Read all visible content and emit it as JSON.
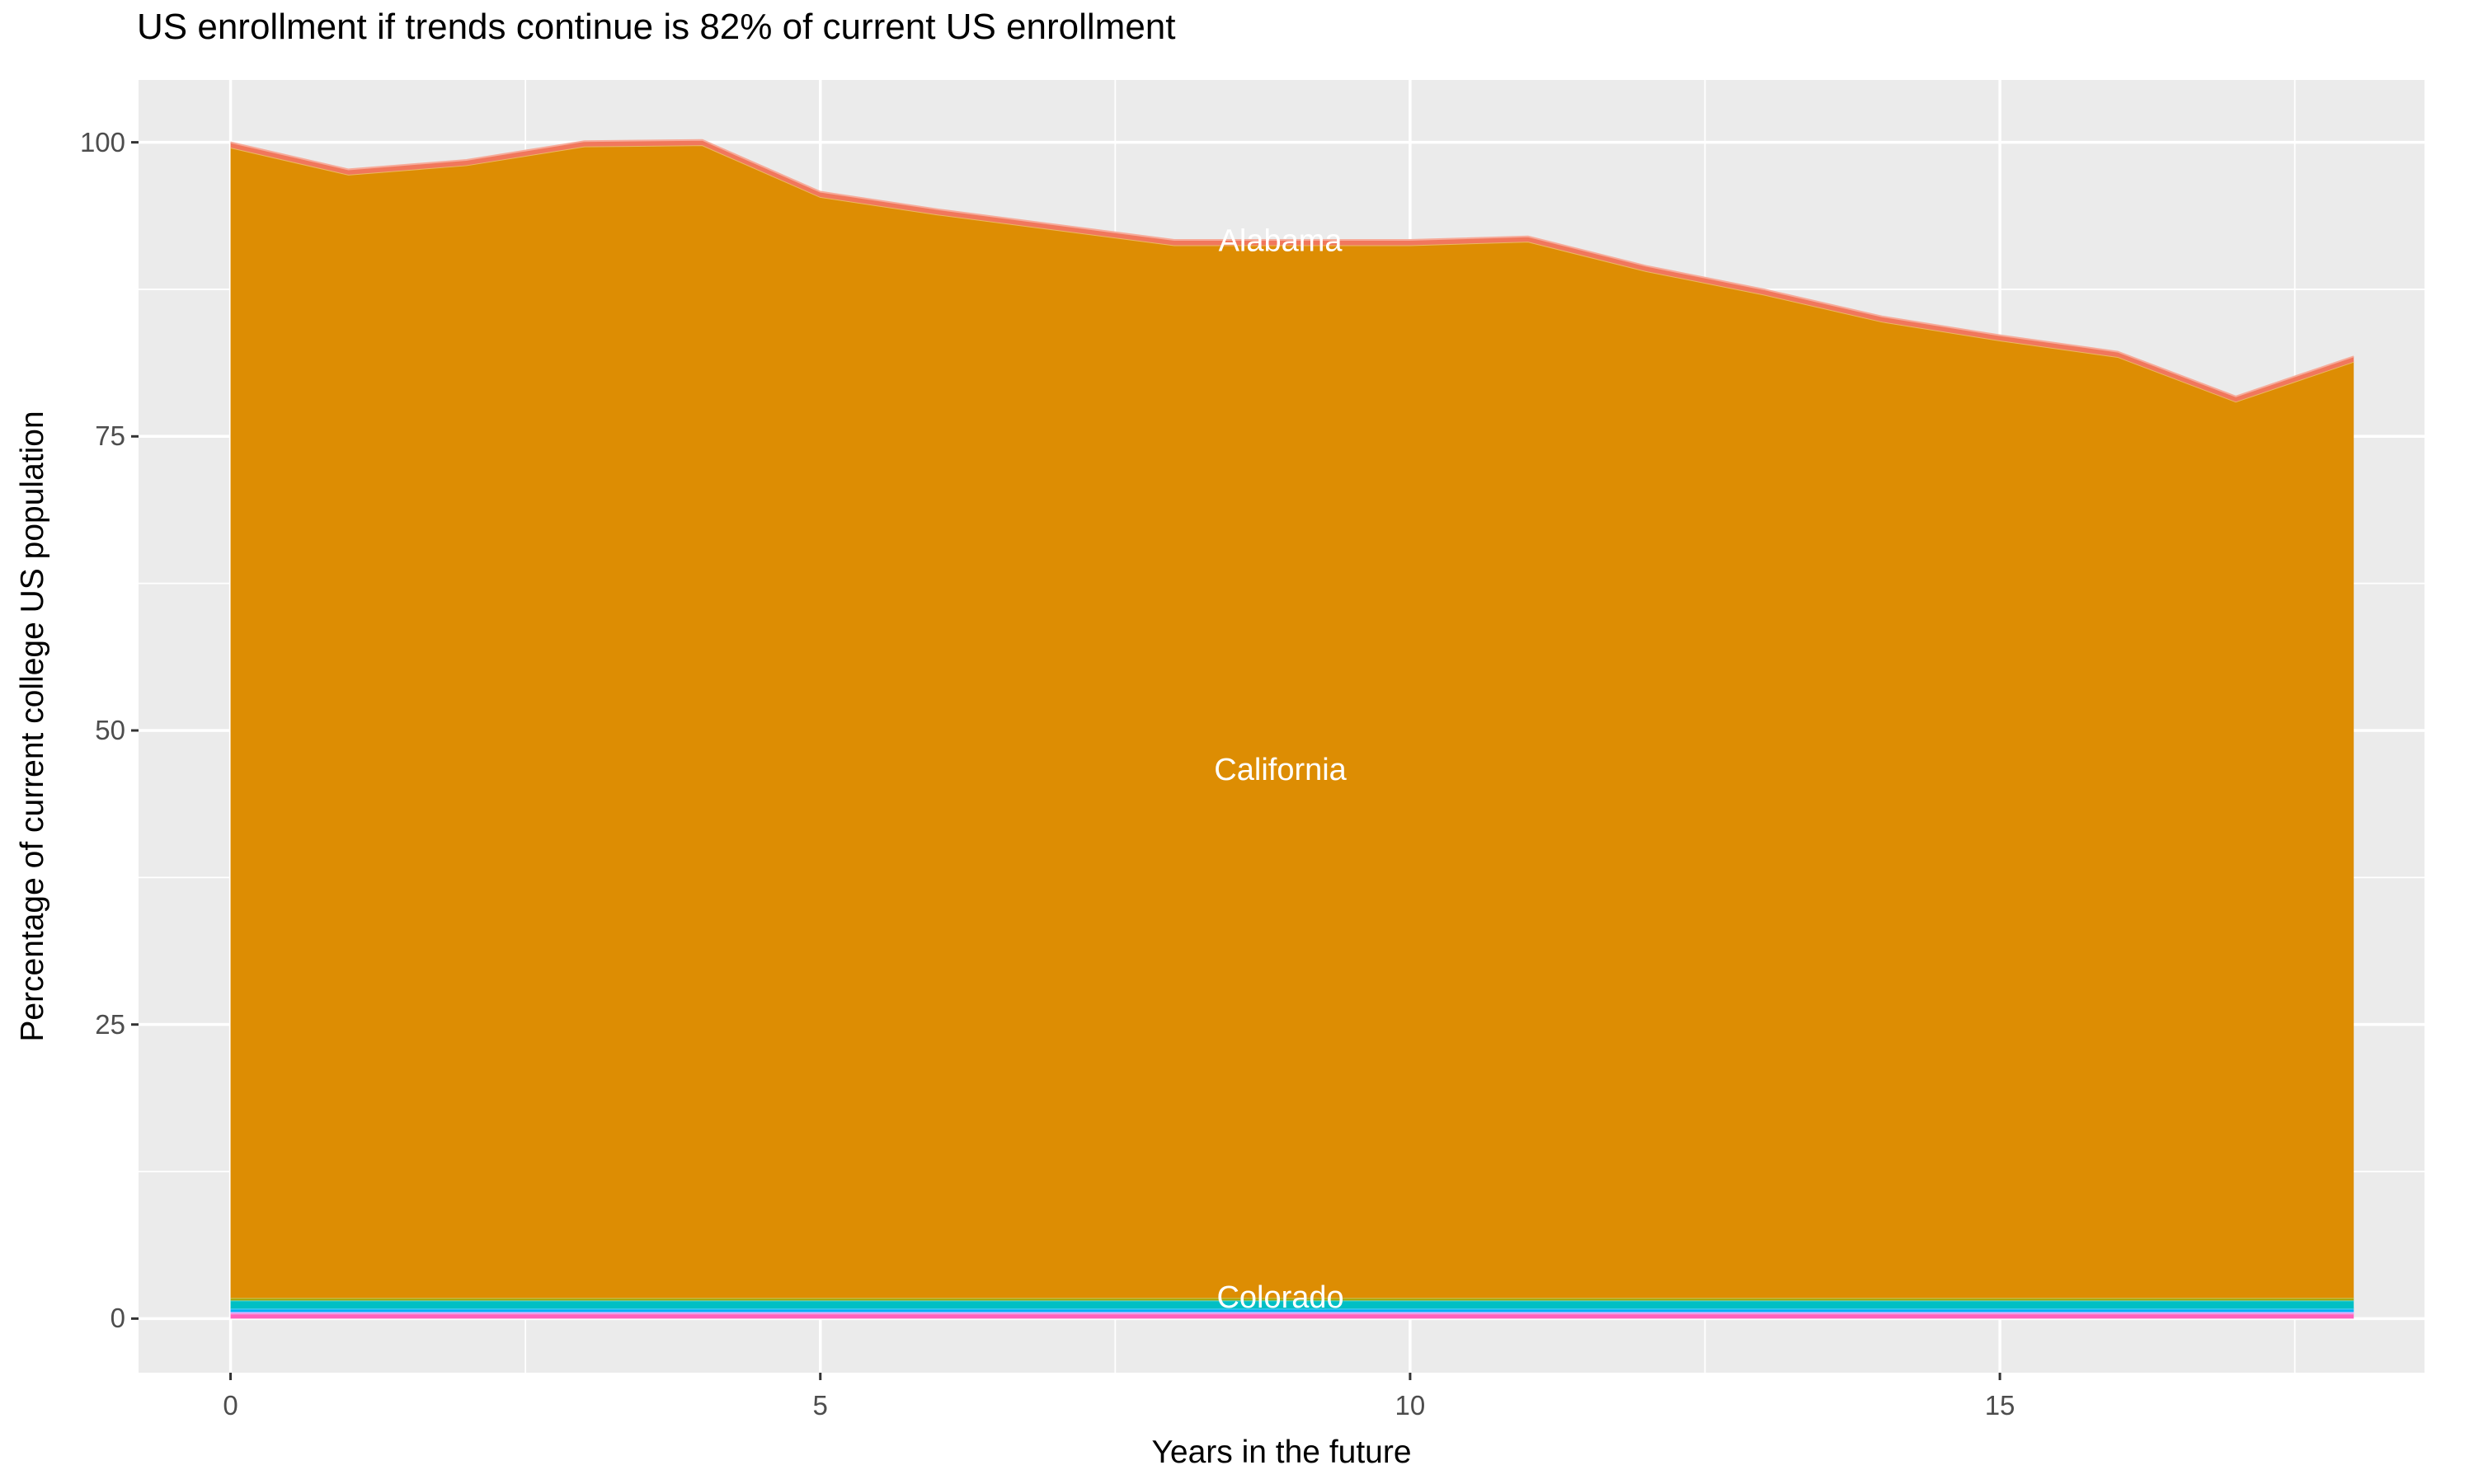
{
  "title": "US enrollment if trends continue is 82% of current US enrollment",
  "chart_data": {
    "type": "area",
    "title": "US enrollment if trends continue is 82% of current US enrollment",
    "xlabel": "Years in the future",
    "ylabel": "Percentage of current college US population",
    "x": [
      0,
      1,
      2,
      3,
      4,
      5,
      6,
      7,
      8,
      9,
      10,
      11,
      12,
      13,
      14,
      15,
      16,
      17,
      18
    ],
    "series": [
      {
        "name": "",
        "color": "#FF62BC",
        "constant": 0.42
      },
      {
        "name": "",
        "color": "#CE9BFF",
        "constant": 0.14
      },
      {
        "name": "",
        "color": "#00B0F6",
        "constant": 0.28
      },
      {
        "name": "",
        "color": "#00BFC4",
        "constant": 0.7
      },
      {
        "name": "Colorado",
        "color": "#A3A500",
        "constant": 0.21
      },
      {
        "name": "California",
        "color": "#DD8D03",
        "values": [
          97.8,
          95.5,
          96.3,
          97.9,
          98.0,
          93.6,
          92.1,
          90.8,
          89.5,
          89.5,
          89.5,
          89.8,
          87.3,
          85.3,
          83.0,
          81.4,
          80.0,
          76.2,
          79.6
        ]
      },
      {
        "name": "Alabama",
        "color": "#F1775C",
        "constant": 0.45
      }
    ],
    "stacked_total_percent": [
      100,
      97.7,
      98.5,
      100.1,
      100.2,
      95.8,
      94.3,
      93.0,
      91.7,
      91.7,
      91.7,
      92.0,
      89.5,
      87.5,
      85.2,
      83.6,
      82.2,
      78.4,
      81.8
    ],
    "final_value_percent": 82,
    "area_labels": [
      {
        "text": "Alabama",
        "x": 8.9
      },
      {
        "text": "California",
        "x": 8.9
      },
      {
        "text": "Colorado",
        "x": 8.9
      }
    ],
    "x_ticks": [
      0,
      5,
      10,
      15
    ],
    "y_ticks": [
      0,
      25,
      50,
      75,
      100
    ],
    "x_minor_ticks": [
      2.5,
      7.5,
      12.5,
      17.5
    ],
    "y_minor_ticks": [
      12.5,
      37.5,
      62.5,
      87.5
    ],
    "xlim": [
      -0.78,
      18.6
    ],
    "ylim": [
      -4.6,
      105.3
    ],
    "legend": "none",
    "grid": "on",
    "colors": {
      "panel_background": "#EBEBEB",
      "gridline": "#FFFFFF",
      "tick_text": "#4D4D4D",
      "tick_mark": "#333333",
      "area_label_text": "#FFFFFF",
      "title_text": "#000000"
    }
  }
}
